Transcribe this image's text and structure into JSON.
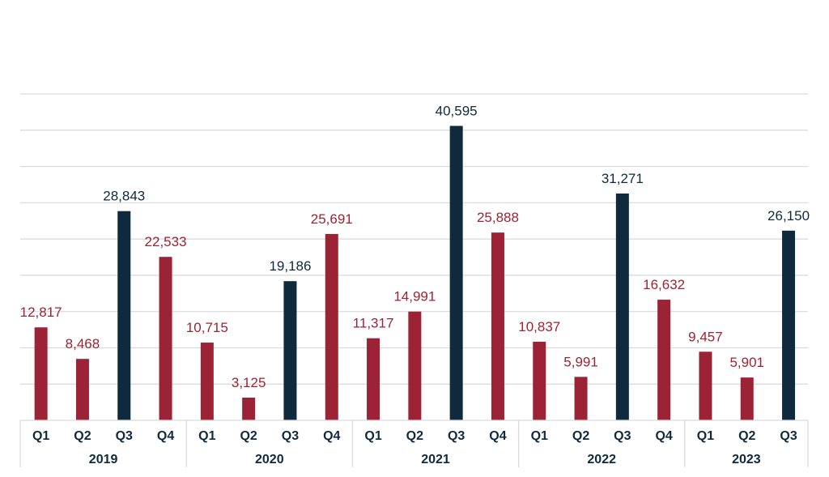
{
  "chart_data": {
    "type": "bar",
    "title": "",
    "xlabel": "",
    "ylabel": "",
    "ylim": [
      0,
      45000
    ],
    "ytick_step": 5000,
    "grid": true,
    "legend": "none",
    "colors": {
      "regular": "#9b2335",
      "q3_highlight": "#0f2a3d",
      "grid": "#d9d9d9",
      "axis_text": "#0f2a3d"
    },
    "groups": [
      {
        "year": "2019",
        "quarters": [
          "Q1",
          "Q2",
          "Q3",
          "Q4"
        ],
        "values": [
          12817,
          8468,
          28843,
          22533
        ],
        "labels": [
          "12,817",
          "8,468",
          "28,843",
          "22,533"
        ]
      },
      {
        "year": "2020",
        "quarters": [
          "Q1",
          "Q2",
          "Q3",
          "Q4"
        ],
        "values": [
          10715,
          3125,
          19186,
          25691
        ],
        "labels": [
          "10,715",
          "3,125",
          "19,186",
          "25,691"
        ]
      },
      {
        "year": "2021",
        "quarters": [
          "Q1",
          "Q2",
          "Q3",
          "Q4"
        ],
        "values": [
          11317,
          14991,
          40595,
          25888
        ],
        "labels": [
          "11,317",
          "14,991",
          "40,595",
          "25,888"
        ]
      },
      {
        "year": "2022",
        "quarters": [
          "Q1",
          "Q2",
          "Q3",
          "Q4"
        ],
        "values": [
          10837,
          5991,
          31271,
          16632
        ],
        "labels": [
          "10,837",
          "5,991",
          "31,271",
          "16,632"
        ]
      },
      {
        "year": "2023",
        "quarters": [
          "Q1",
          "Q2",
          "Q3"
        ],
        "values": [
          9457,
          5901,
          26150
        ],
        "labels": [
          "9,457",
          "5,901",
          "26,150"
        ]
      }
    ]
  }
}
